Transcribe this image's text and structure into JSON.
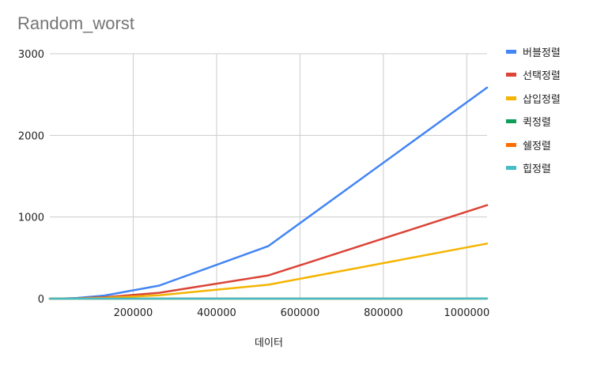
{
  "chart_data": {
    "type": "line",
    "title": "Random_worst",
    "xlabel": "데이터",
    "ylabel": "",
    "xlim": [
      0,
      1048576
    ],
    "ylim": [
      0,
      3000
    ],
    "xticks": [
      200000,
      400000,
      600000,
      800000,
      1000000
    ],
    "xtick_labels": [
      "200000",
      "400000",
      "600000",
      "800000",
      "1000000"
    ],
    "yticks": [
      0,
      1000,
      2000,
      3000
    ],
    "ytick_labels": [
      "0",
      "1000",
      "2000",
      "3000"
    ],
    "grid": true,
    "legend_position": "right",
    "x": [
      0,
      32768,
      65536,
      131072,
      262144,
      524288,
      1048576
    ],
    "series": [
      {
        "name": "버블정렬",
        "color": "#4285f4",
        "values": [
          0,
          2,
          9,
          38,
          160,
          645,
          2585
        ]
      },
      {
        "name": "선택정렬",
        "color": "#db4437",
        "values": [
          0,
          1,
          4,
          17,
          72,
          285,
          1145
        ]
      },
      {
        "name": "삽입정렬",
        "color": "#f4b400",
        "values": [
          0,
          0.5,
          2,
          10,
          42,
          170,
          675
        ]
      },
      {
        "name": "퀵정렬",
        "color": "#0f9d58",
        "values": [
          0,
          0,
          0,
          0.1,
          0.2,
          0.4,
          0.9
        ]
      },
      {
        "name": "쉘정렬",
        "color": "#ff6d01",
        "values": [
          0,
          0,
          0,
          0.1,
          0.2,
          0.4,
          0.8
        ]
      },
      {
        "name": "힙정렬",
        "color": "#46bdc6",
        "values": [
          0,
          0,
          0,
          0.1,
          0.2,
          0.4,
          0.9
        ]
      }
    ]
  }
}
